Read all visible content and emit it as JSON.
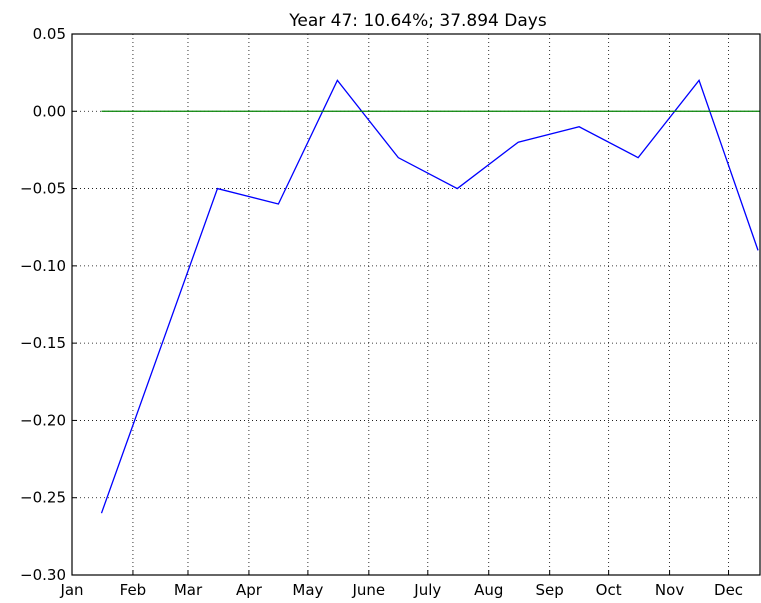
{
  "chart_data": {
    "type": "line",
    "title": "Year 47: 10.64%; 37.894 Days",
    "series": [
      {
        "color": "#0000ff",
        "x": [
          15,
          74,
          105,
          135,
          166,
          196,
          227,
          258,
          288,
          319,
          349
        ],
        "values": [
          -0.26,
          -0.05,
          -0.06,
          0.02,
          -0.03,
          -0.05,
          -0.02,
          -0.01,
          -0.03,
          0.02,
          -0.09
        ]
      },
      {
        "color": "#008000",
        "x": [
          15,
          350
        ],
        "values": [
          0,
          0
        ]
      }
    ],
    "xlim": [
      0,
      350
    ],
    "xticks": [
      {
        "value": 0,
        "label": "Jan"
      },
      {
        "value": 31,
        "label": "Feb"
      },
      {
        "value": 59,
        "label": "Mar"
      },
      {
        "value": 90,
        "label": "Apr"
      },
      {
        "value": 120,
        "label": "May"
      },
      {
        "value": 151,
        "label": "June"
      },
      {
        "value": 181,
        "label": "July"
      },
      {
        "value": 212,
        "label": "Aug"
      },
      {
        "value": 243,
        "label": "Sep"
      },
      {
        "value": 273,
        "label": "Oct"
      },
      {
        "value": 304,
        "label": "Nov"
      },
      {
        "value": 334,
        "label": "Dec"
      }
    ],
    "ylim": [
      -0.3,
      0.05
    ],
    "yticks": [
      {
        "value": -0.3,
        "label": "−0.30"
      },
      {
        "value": -0.25,
        "label": "−0.25"
      },
      {
        "value": -0.2,
        "label": "−0.20"
      },
      {
        "value": -0.15,
        "label": "−0.15"
      },
      {
        "value": -0.1,
        "label": "−0.10"
      },
      {
        "value": -0.05,
        "label": "−0.05"
      },
      {
        "value": 0,
        "label": "0.00"
      },
      0.05
    ],
    "grid": true
  }
}
